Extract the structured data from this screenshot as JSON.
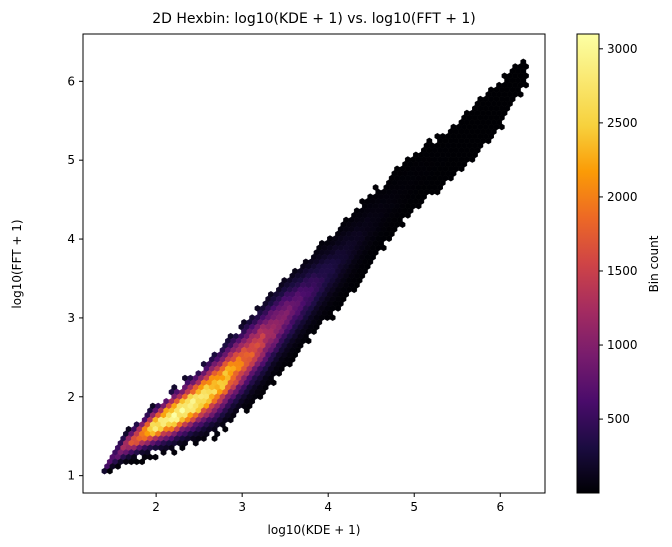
{
  "chart_data": {
    "type": "heatmap",
    "subtype": "hexbin",
    "title": "2D Hexbin: log10(KDE + 1) vs. log10(FFT + 1)",
    "xlabel": "log10(KDE + 1)",
    "ylabel": "log10(FFT + 1)",
    "xlim": [
      1.15,
      6.52
    ],
    "ylim": [
      0.78,
      6.6
    ],
    "xticks": [
      "2",
      "3",
      "4",
      "5",
      "6"
    ],
    "yticks": [
      "1",
      "2",
      "3",
      "4",
      "5",
      "6"
    ],
    "colormap": "inferno",
    "grid": false,
    "colorbar": {
      "label": "Bin count",
      "range": [
        1,
        3100
      ],
      "ticks": [
        "500",
        "1000",
        "1500",
        "2000",
        "2500",
        "3000"
      ]
    },
    "distribution": {
      "description": "dense diagonal band, peak near KDE 2.2, FFT 2.0",
      "peak": {
        "x": 2.2,
        "y": 2.0,
        "count": 3050
      },
      "lower_edge": [
        [
          1.35,
          1.0
        ],
        [
          1.8,
          1.2
        ],
        [
          2.2,
          1.3
        ],
        [
          2.7,
          1.5
        ],
        [
          3.2,
          2.0
        ],
        [
          3.7,
          2.6
        ],
        [
          4.2,
          3.2
        ],
        [
          4.6,
          3.8
        ],
        [
          5.0,
          4.4
        ],
        [
          5.5,
          4.8
        ],
        [
          6.0,
          5.4
        ],
        [
          6.3,
          5.95
        ]
      ],
      "upper_edge": [
        [
          1.35,
          1.05
        ],
        [
          1.6,
          1.5
        ],
        [
          2.0,
          1.9
        ],
        [
          2.5,
          2.35
        ],
        [
          3.0,
          2.9
        ],
        [
          3.5,
          3.5
        ],
        [
          4.0,
          4.0
        ],
        [
          4.5,
          4.6
        ],
        [
          5.0,
          5.05
        ],
        [
          5.5,
          5.5
        ],
        [
          6.0,
          6.0
        ],
        [
          6.28,
          6.32
        ]
      ]
    }
  }
}
